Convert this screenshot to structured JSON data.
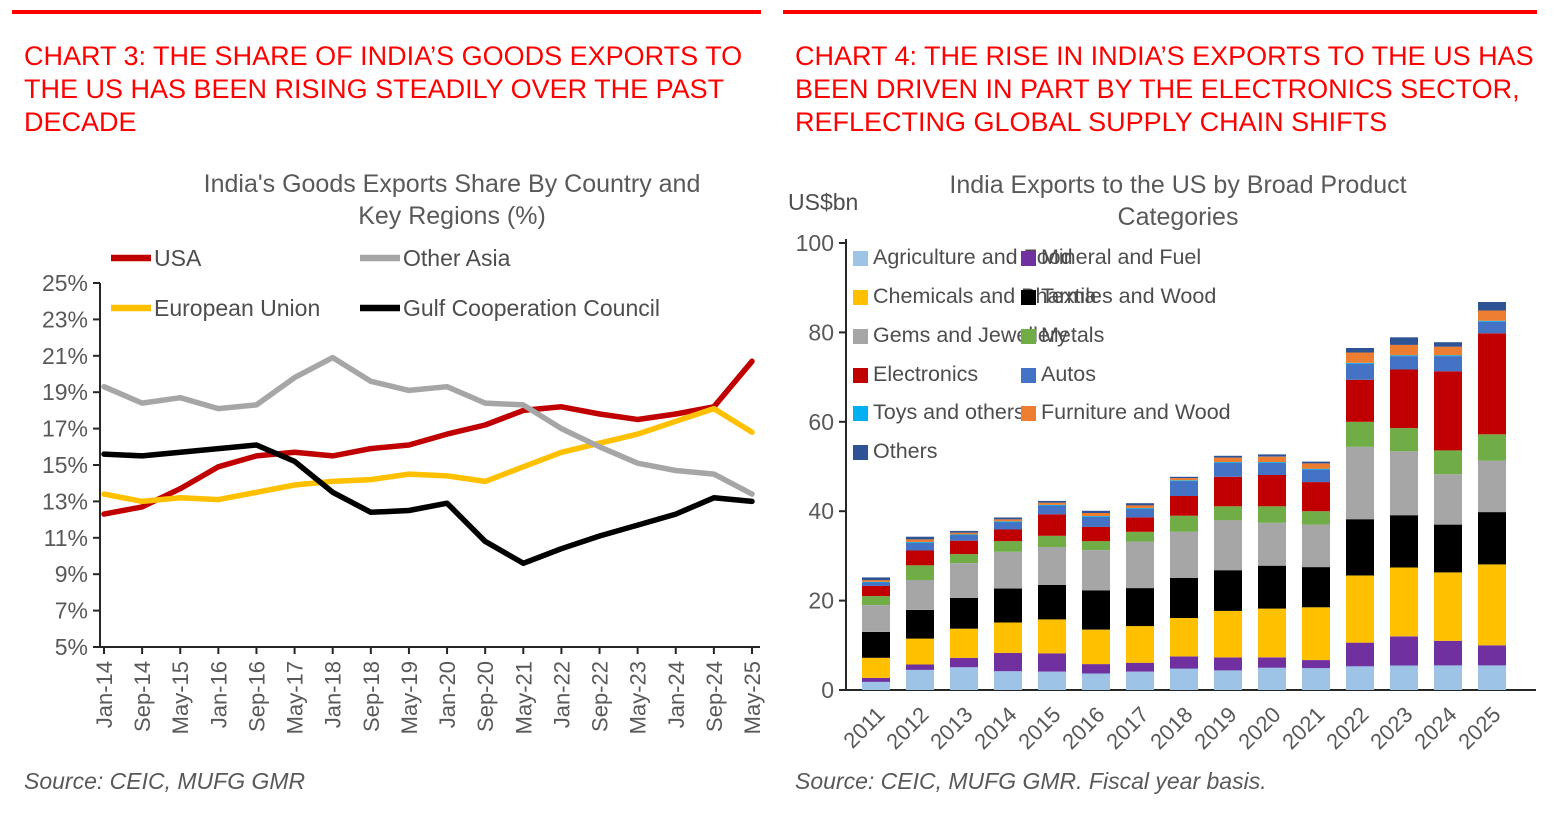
{
  "colors": {
    "heading_red": "#fe0000",
    "rule_red": "#fe0000",
    "axis_line": "#262626",
    "axis_text": "#595959",
    "title_text": "#595959",
    "legend_text": "#4d4d4d",
    "source_text": "#595959"
  },
  "panels": {
    "left": {
      "heading": "CHART 3: THE SHARE OF INDIA’S GOODS EXPORTS TO THE US HAS BEEN RISING STEADILY OVER THE PAST DECADE",
      "source": "Source: CEIC, MUFG GMR"
    },
    "right": {
      "heading": "CHART 4: THE RISE IN INDIA’S EXPORTS TO THE US HAS BEEN DRIVEN IN PART BY THE ELECTRONICS SECTOR, REFLECTING GLOBAL SUPPLY CHAIN SHIFTS",
      "source": "Source: CEIC, MUFG GMR.  Fiscal year basis."
    }
  },
  "chart_data": [
    {
      "type": "line",
      "title_lines": [
        "India's Goods Exports Share By Country and",
        "Key Regions (%)"
      ],
      "ylim": [
        5,
        25
      ],
      "ytick_values": [
        25,
        23,
        21,
        19,
        17,
        15,
        13,
        11,
        9,
        7,
        5
      ],
      "ytick_suffix": "%",
      "grid": false,
      "legend_position": "inside-top-two-columns",
      "x_tick_labels": [
        "Jan-14",
        "Sep-14",
        "May-15",
        "Jan-16",
        "Sep-16",
        "May-17",
        "Jan-18",
        "Sep-18",
        "May-19",
        "Jan-20",
        "Sep-20",
        "May-21",
        "Jan-22",
        "Sep-22",
        "May-23",
        "Jan-24",
        "Sep-24",
        "May-25"
      ],
      "series": [
        {
          "name": "USA",
          "color": "#C00000",
          "values": [
            12.3,
            12.7,
            13.7,
            14.9,
            15.5,
            15.7,
            15.5,
            15.9,
            16.1,
            16.7,
            17.2,
            18.0,
            18.2,
            17.8,
            17.5,
            17.8,
            18.2,
            20.7
          ]
        },
        {
          "name": "European Union",
          "color": "#FFC000",
          "values": [
            13.4,
            13.0,
            13.2,
            13.1,
            13.5,
            13.9,
            14.1,
            14.2,
            14.5,
            14.4,
            14.1,
            14.9,
            15.7,
            16.2,
            16.7,
            17.4,
            18.1,
            16.8
          ]
        },
        {
          "name": "Other Asia",
          "color": "#A6A6A6",
          "values": [
            19.3,
            18.4,
            18.7,
            18.1,
            18.3,
            19.8,
            20.9,
            19.6,
            19.1,
            19.3,
            18.4,
            18.3,
            17.0,
            16.0,
            15.1,
            14.7,
            14.5,
            13.4
          ]
        },
        {
          "name": "Gulf Cooperation Council",
          "color": "#000000",
          "values": [
            15.6,
            15.5,
            15.7,
            15.9,
            16.1,
            15.2,
            13.5,
            12.4,
            12.5,
            12.9,
            10.8,
            9.6,
            10.4,
            11.1,
            11.7,
            12.3,
            13.2,
            13.0
          ]
        }
      ]
    },
    {
      "type": "bar",
      "stacked": true,
      "title_lines": [
        "India Exports to the US by Broad Product",
        "Categories"
      ],
      "unit_label": "US$bn",
      "ylim": [
        0,
        100
      ],
      "ytick_values": [
        0,
        20,
        40,
        60,
        80,
        100
      ],
      "grid": false,
      "legend_position": "inside-top-two-columns",
      "categories": [
        "2011",
        "2012",
        "2013",
        "2014",
        "2015",
        "2016",
        "2017",
        "2018",
        "2019",
        "2020",
        "2021",
        "2022",
        "2023",
        "2024",
        "2025"
      ],
      "series": [
        {
          "name": "Agriculture and Food",
          "color": "#9DC3E6",
          "values": [
            1.8,
            4.5,
            5.1,
            4.2,
            4.1,
            3.7,
            4.1,
            4.8,
            4.4,
            5.0,
            4.9,
            5.3,
            5.5,
            5.5,
            5.5
          ]
        },
        {
          "name": "Mineral and Fuel",
          "color": "#7030A0",
          "values": [
            0.9,
            1.2,
            2.1,
            4.1,
            4.1,
            2.1,
            2.0,
            2.7,
            2.9,
            2.3,
            1.8,
            5.3,
            6.5,
            5.5,
            4.5
          ]
        },
        {
          "name": "Chemicals and Pharma",
          "color": "#FFC000",
          "values": [
            4.5,
            5.8,
            6.5,
            6.8,
            7.6,
            7.7,
            8.2,
            8.6,
            10.4,
            10.9,
            11.8,
            15.0,
            15.4,
            15.3,
            18.1
          ]
        },
        {
          "name": "Textiles and Wood",
          "color": "#000000",
          "values": [
            5.8,
            6.4,
            6.9,
            7.6,
            7.7,
            8.8,
            8.5,
            9.0,
            9.1,
            9.6,
            9.0,
            12.6,
            11.7,
            10.7,
            11.7
          ]
        },
        {
          "name": "Gems and Jewellery",
          "color": "#A6A6A6",
          "values": [
            6.0,
            6.7,
            7.8,
            8.2,
            8.5,
            9.0,
            10.4,
            10.3,
            11.2,
            9.6,
            9.5,
            16.2,
            14.3,
            11.3,
            11.5
          ]
        },
        {
          "name": "Metals",
          "color": "#70AD47",
          "values": [
            2.0,
            3.3,
            2.0,
            2.4,
            2.5,
            2.0,
            2.2,
            3.6,
            3.1,
            3.7,
            3.0,
            5.6,
            5.2,
            5.3,
            5.9
          ]
        },
        {
          "name": "Electronics",
          "color": "#C00000",
          "values": [
            2.3,
            3.3,
            3.0,
            2.6,
            4.8,
            3.2,
            3.2,
            4.4,
            6.6,
            7.0,
            6.5,
            9.4,
            13.1,
            17.7,
            22.6
          ]
        },
        {
          "name": "Autos",
          "color": "#4472C4",
          "values": [
            0.8,
            1.7,
            1.3,
            1.7,
            2.0,
            2.3,
            2.0,
            3.4,
            3.1,
            2.7,
            2.8,
            3.6,
            3.0,
            3.4,
            2.6
          ]
        },
        {
          "name": "Toys and others",
          "color": "#00B0F0",
          "values": [
            0.1,
            0.2,
            0.1,
            0.1,
            0.1,
            0.1,
            0.1,
            0.1,
            0.2,
            0.2,
            0.2,
            0.2,
            0.2,
            0.2,
            0.2
          ]
        },
        {
          "name": "Furniture and Wood",
          "color": "#ED7D31",
          "values": [
            0.4,
            0.6,
            0.4,
            0.5,
            0.5,
            0.7,
            0.6,
            0.5,
            1.0,
            1.2,
            1.2,
            2.3,
            2.3,
            1.9,
            2.3
          ]
        },
        {
          "name": "Others",
          "color": "#2E5395",
          "values": [
            0.6,
            0.6,
            0.4,
            0.4,
            0.4,
            0.5,
            0.5,
            0.3,
            0.4,
            0.5,
            0.4,
            1.0,
            1.7,
            1.0,
            1.9
          ]
        }
      ]
    }
  ]
}
